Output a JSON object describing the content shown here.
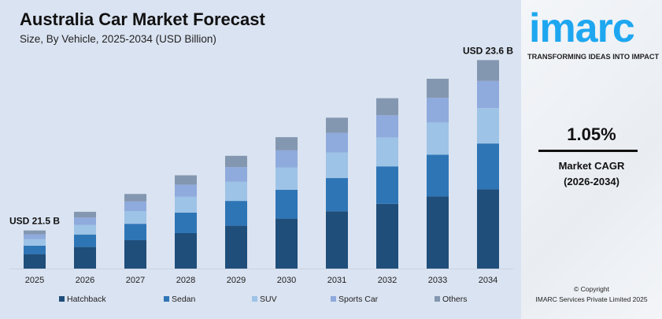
{
  "chart_data": {
    "type": "bar",
    "stacked": true,
    "title": "Australia Car Market Forecast",
    "subtitle": "Size, By Vehicle, 2025-2034 (USD Billion)",
    "categories": [
      "2025",
      "2026",
      "2027",
      "2028",
      "2029",
      "2030",
      "2031",
      "2032",
      "2033",
      "2034"
    ],
    "totals": [
      21.5,
      21.73,
      21.95,
      22.18,
      22.42,
      22.65,
      22.89,
      23.13,
      23.37,
      23.6
    ],
    "segment_shares": {
      "Hatchback": 0.38,
      "Sedan": 0.22,
      "SUV": 0.17,
      "Sports Car": 0.13,
      "Others": 0.1
    },
    "series": [
      {
        "name": "Hatchback",
        "color": "#1f4e7a"
      },
      {
        "name": "Sedan",
        "color": "#2e75b6"
      },
      {
        "name": "SUV",
        "color": "#9dc3e6"
      },
      {
        "name": "Sports Car",
        "color": "#8faadc"
      },
      {
        "name": "Others",
        "color": "#8497b0"
      }
    ],
    "annotations": [
      {
        "category": "2025",
        "text": "USD 21.5 B"
      },
      {
        "category": "2034",
        "text": "USD 23.6 B"
      }
    ],
    "legend": "bottom",
    "grid": false
  },
  "brand": {
    "logo": "imarc",
    "tagline": "TRANSFORMING IDEAS INTO IMPACT",
    "color": "#1ea7f0"
  },
  "cagr": {
    "value": "1.05%",
    "label": "Market CAGR",
    "period": "(2026-2034)"
  },
  "footer": {
    "copyright": "© Copyright",
    "company": "IMARC Services Private Limited 2025"
  }
}
